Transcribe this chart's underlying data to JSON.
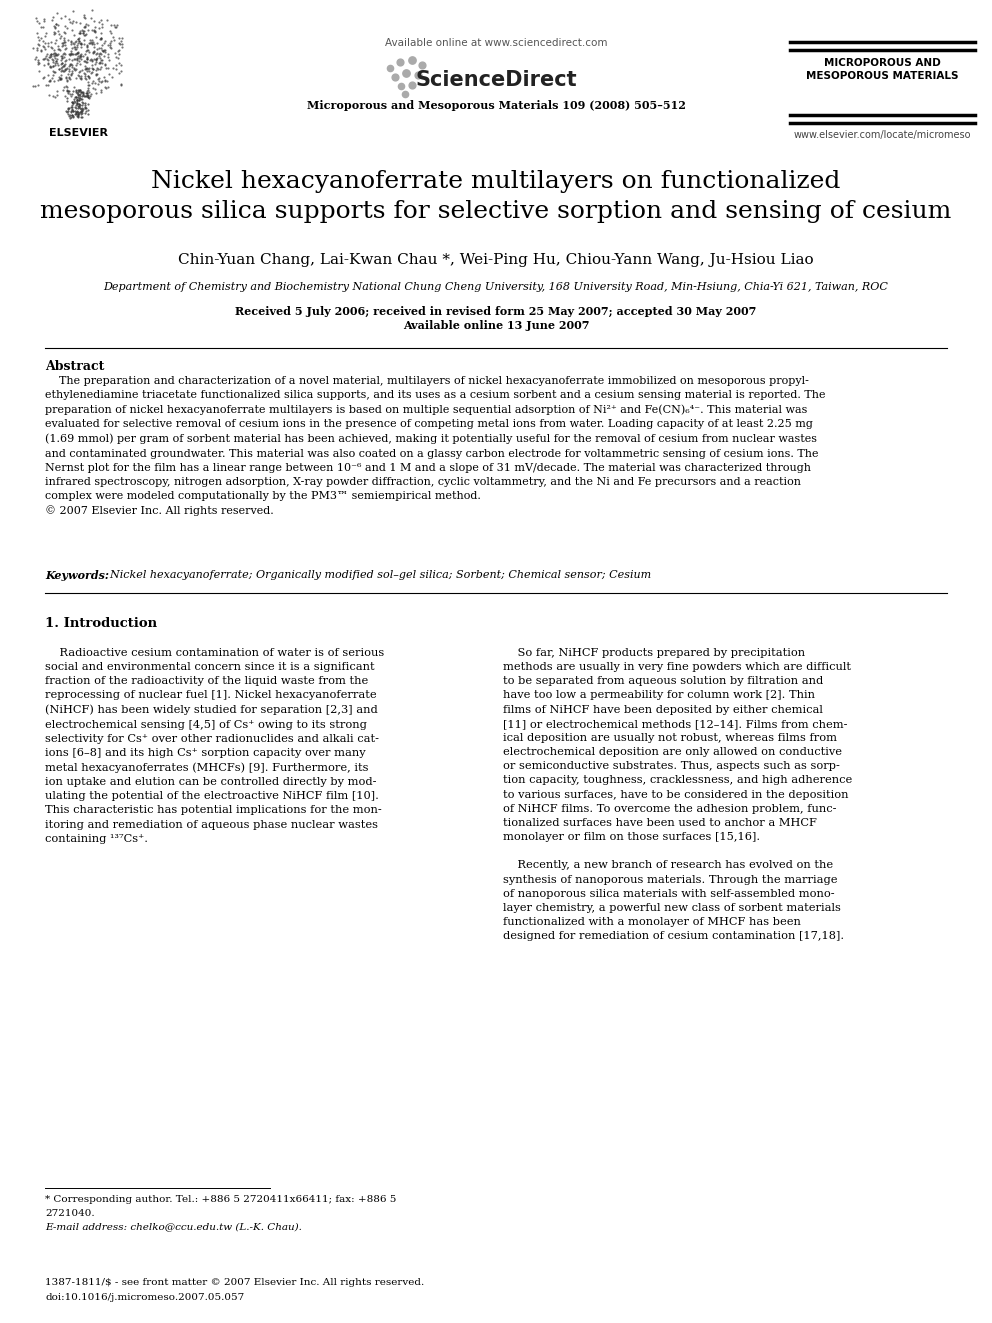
{
  "bg_color": "#ffffff",
  "title_line1": "Nickel hexacyanoferrate multilayers on functionalized",
  "title_line2": "mesoporous silica supports for selective sorption and sensing of cesium",
  "authors": "Chin-Yuan Chang, Lai-Kwan Chau *, Wei-Ping Hu, Chiou-Yann Wang, Ju-Hsiou Liao",
  "affiliation": "Department of Chemistry and Biochemistry National Chung Cheng University, 168 University Road, Min-Hsiung, Chia-Yi 621, Taiwan, ROC",
  "received": "Received 5 July 2006; received in revised form 25 May 2007; accepted 30 May 2007",
  "available": "Available online 13 June 2007",
  "journal_header": "Microporous and Mesoporous Materials 109 (2008) 505–512",
  "sciencedirect_url": "Available online at www.sciencedirect.com",
  "journal_name_right": "MICROPOROUS AND\nMESOPOROUS MATERIALS",
  "website_right": "www.elsevier.com/locate/micromeso",
  "abstract_title": "Abstract",
  "keywords_label": "Keywords:",
  "keywords_text": "  Nickel hexacyanoferrate; Organically modified sol–gel silica; Sorbent; Chemical sensor; Cesium",
  "section1_title": "1. Introduction",
  "footnote_star": "* Corresponding author. Tel.: +886 5 2720411x66411; fax: +886 5",
  "footnote_star2": "2721040.",
  "footnote_email": "E-mail address: chelko@ccu.edu.tw (L.-K. Chau).",
  "footer_issn": "1387-1811/$ - see front matter © 2007 Elsevier Inc. All rights reserved.",
  "footer_doi": "doi:10.1016/j.micromeso.2007.05.057"
}
